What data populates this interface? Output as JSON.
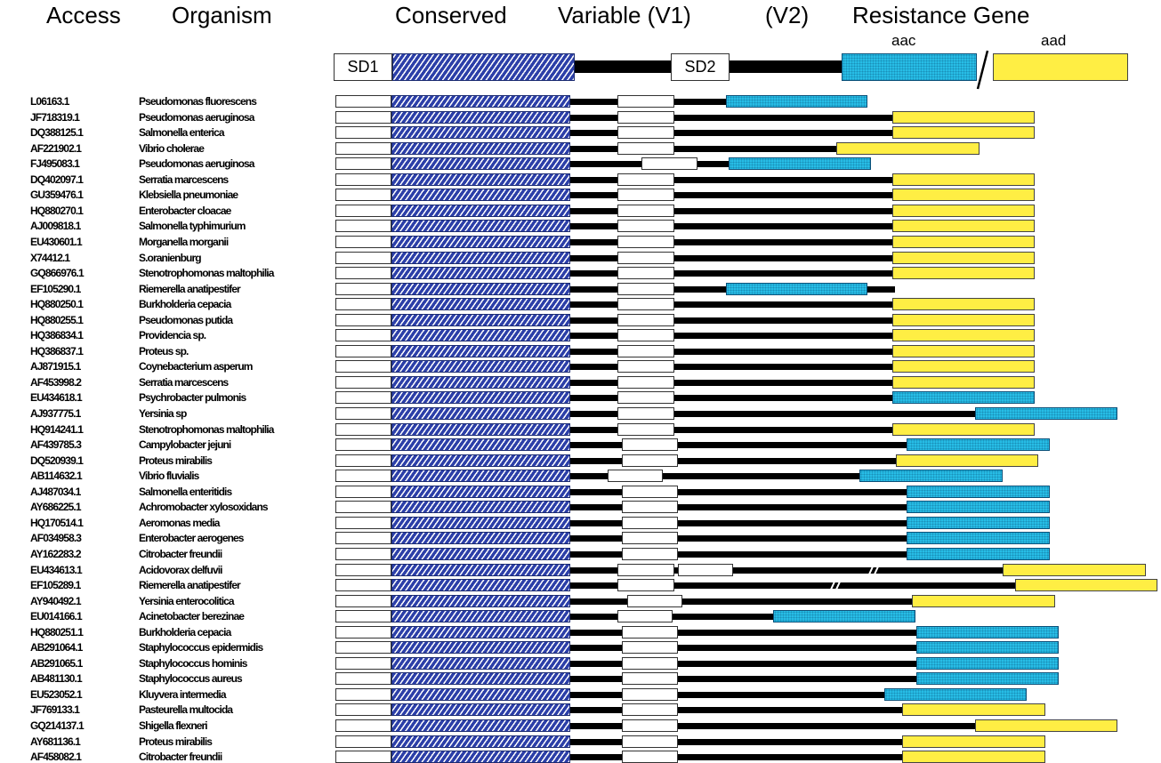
{
  "header": {
    "access": "Access",
    "organism": "Organism",
    "conserved": "Conserved",
    "variable_v1": "Variable (V1)",
    "v2": "(V2)",
    "resistance_gene": "Resistance Gene",
    "aac": "aac",
    "aad": "aad",
    "sd1": "SD1",
    "sd2": "SD2"
  },
  "colors": {
    "conserved": "#2c3fa8",
    "aac": "#27bde6",
    "aad": "#ffee44",
    "line": "#000000"
  },
  "rows": [
    {
      "access": "L06163.1",
      "organism": "Pseudomonas fluorescens",
      "gene": "aac"
    },
    {
      "access": "JF718319.1",
      "organism": "Pseudomonas aeruginosa",
      "gene": "aad"
    },
    {
      "access": "DQ388125.1",
      "organism": "Salmonella enterica",
      "gene": "aad"
    },
    {
      "access": "AF221902.1",
      "organism": "Vibrio cholerae",
      "gene": "aad"
    },
    {
      "access": "FJ495083.1",
      "organism": "Pseudomonas aeruginosa",
      "gene": "aac"
    },
    {
      "access": "DQ402097.1",
      "organism": "Serratia marcescens",
      "gene": "aad"
    },
    {
      "access": "GU359476.1",
      "organism": "Klebsiella pneumoniae",
      "gene": "aad"
    },
    {
      "access": "HQ880270.1",
      "organism": "Enterobacter cloacae",
      "gene": "aad"
    },
    {
      "access": "AJ009818.1",
      "organism": "Salmonella typhimurium",
      "gene": "aad"
    },
    {
      "access": "EU430601.1",
      "organism": "Morganella morganii",
      "gene": "aad"
    },
    {
      "access": "X74412.1",
      "organism": "S.oranienburg",
      "gene": "aad"
    },
    {
      "access": "GQ866976.1",
      "organism": "Stenotrophomonas maltophilia",
      "gene": "aad"
    },
    {
      "access": "EF105290.1",
      "organism": "Riemerella anatipestifer",
      "gene": "aac"
    },
    {
      "access": "HQ880250.1",
      "organism": "Burkholderia cepacia",
      "gene": "aad"
    },
    {
      "access": "HQ880255.1",
      "organism": "Pseudomonas putida",
      "gene": "aad"
    },
    {
      "access": "HQ386834.1",
      "organism": "Providencia sp.",
      "gene": "aad"
    },
    {
      "access": "HQ386837.1",
      "organism": "Proteus sp.",
      "gene": "aad"
    },
    {
      "access": "AJ871915.1",
      "organism": "Coynebacterium asperum",
      "gene": "aad"
    },
    {
      "access": "AF453998.2",
      "organism": "Serratia marcescens",
      "gene": "aad"
    },
    {
      "access": "EU434618.1",
      "organism": "Psychrobacter pulmonis",
      "gene": "aac"
    },
    {
      "access": "AJ937775.1",
      "organism": "Yersinia sp",
      "gene": "aac"
    },
    {
      "access": "HQ914241.1",
      "organism": "Stenotrophomonas maltophilia",
      "gene": "aad"
    },
    {
      "access": "AF439785.3",
      "organism": "Campylobacter jejuni",
      "gene": "aac"
    },
    {
      "access": "DQ520939.1",
      "organism": "Proteus mirabilis",
      "gene": "aad"
    },
    {
      "access": "AB114632.1",
      "organism": "Vibrio fluvialis",
      "gene": "aac"
    },
    {
      "access": "AJ487034.1",
      "organism": "Salmonella enteritidis",
      "gene": "aac"
    },
    {
      "access": "AY686225.1",
      "organism": "Achromobacter xylosoxidans",
      "gene": "aac"
    },
    {
      "access": "HQ170514.1",
      "organism": "Aeromonas media",
      "gene": "aac"
    },
    {
      "access": "AF034958.3",
      "organism": "Enterobacter aerogenes",
      "gene": "aac"
    },
    {
      "access": "AY162283.2",
      "organism": "Citrobacter freundii",
      "gene": "aac"
    },
    {
      "access": "EU434613.1",
      "organism": "Acidovorax delfuvii",
      "gene": "aad"
    },
    {
      "access": "EF105289.1",
      "organism": "Riemerella anatipestifer",
      "gene": "aad"
    },
    {
      "access": "AY940492.1",
      "organism": "Yersinia enterocolitica",
      "gene": "aad"
    },
    {
      "access": "EU014166.1",
      "organism": "Acinetobacter berezinae",
      "gene": "aac"
    },
    {
      "access": "HQ880251.1",
      "organism": "Burkholderia cepacia",
      "gene": "aac"
    },
    {
      "access": "AB291064.1",
      "organism": "Staphylococcus epidermidis",
      "gene": "aac"
    },
    {
      "access": "AB291065.1",
      "organism": "Staphylococcus hominis",
      "gene": "aac"
    },
    {
      "access": "AB481130.1",
      "organism": "Staphylococcus aureus",
      "gene": "aac"
    },
    {
      "access": "EU523052.1",
      "organism": "Kluyvera intermedia",
      "gene": "aac"
    },
    {
      "access": "JF769133.1",
      "organism": "Pasteurella multocida",
      "gene": "aad"
    },
    {
      "access": "GQ214137.1",
      "organism": "Shigella flexneri",
      "gene": "aad"
    },
    {
      "access": "AY681136.1",
      "organism": "Proteus mirabilis",
      "gene": "aad"
    },
    {
      "access": "AF458082.1",
      "organism": "Citrobacter freundii",
      "gene": "aad"
    }
  ]
}
